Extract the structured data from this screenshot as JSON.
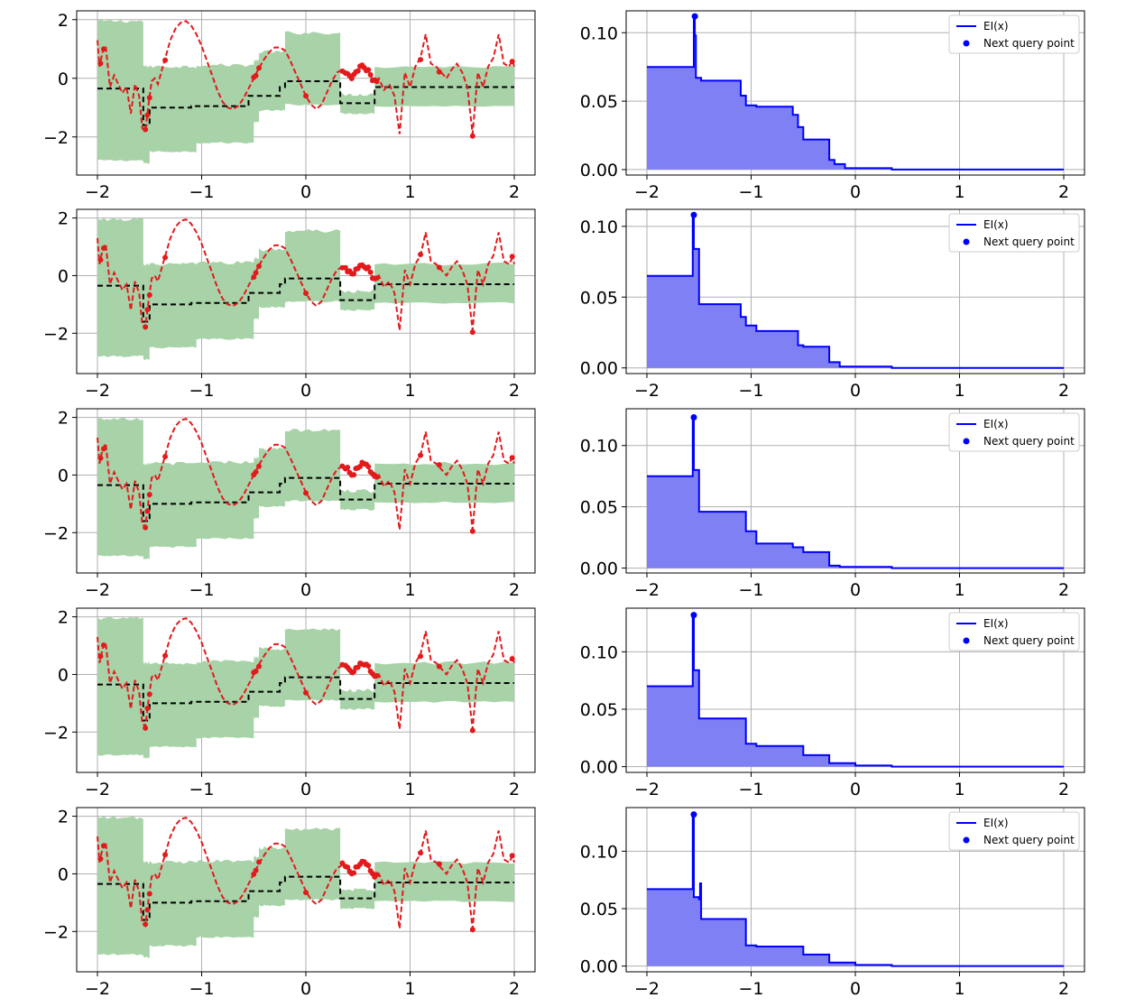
{
  "colors": {
    "band": "#a8d2a8",
    "mean": "#000000",
    "objective": "#e31a1c",
    "samples": "#e31a1c",
    "ei_line": "#0000ff",
    "ei_fill": "#8080f5",
    "next_point": "#0000ff",
    "grid": "#b0b0b0"
  },
  "chart_data": [
    {
      "type": "line",
      "panel": "gp-posterior",
      "row": 0,
      "x_range": [
        -2,
        2
      ],
      "y_range": [
        -3.3,
        2.3
      ],
      "xticks": [
        "−2",
        "−1",
        "0",
        "1",
        "2"
      ],
      "yticks": [
        "−2",
        "0",
        "2"
      ],
      "grid": true,
      "objective": {
        "x": [
          -2,
          -1.98,
          -1.95,
          -1.92,
          -1.88,
          -1.84,
          -1.8,
          -1.76,
          -1.72,
          -1.68,
          -1.64,
          -1.6,
          -1.57,
          -1.54,
          -1.51,
          -1.48,
          -1.45,
          -1.42,
          -1.38,
          -1.34,
          -1.3,
          -1.25,
          -1.2,
          -1.15,
          -1.1,
          -1.05,
          -1.0,
          -0.95,
          -0.9,
          -0.85,
          -0.8,
          -0.75,
          -0.7,
          -0.65,
          -0.6,
          -0.55,
          -0.5,
          -0.45,
          -0.4,
          -0.35,
          -0.3,
          -0.25,
          -0.2,
          -0.15,
          -0.1,
          -0.05,
          0,
          0.05,
          0.1,
          0.15,
          0.2,
          0.25,
          0.3,
          0.35,
          0.4,
          0.45,
          0.5,
          0.55,
          0.6,
          0.65,
          0.7,
          0.75,
          0.8,
          0.85,
          0.9,
          0.95,
          1.0,
          1.05,
          1.1,
          1.15,
          1.2,
          1.25,
          1.3,
          1.35,
          1.4,
          1.45,
          1.5,
          1.55,
          1.6,
          1.65,
          1.7,
          1.75,
          1.8,
          1.85,
          1.9,
          1.95,
          1.98,
          2.0
        ],
        "y": [
          1.3,
          0.4,
          0.9,
          1.1,
          -0.3,
          0.1,
          -0.2,
          -0.5,
          -0.3,
          -1.2,
          -0.2,
          -0.6,
          -1.7,
          -1.8,
          -0.9,
          -0.1,
          0.0,
          -0.2,
          0.3,
          0.8,
          1.3,
          1.7,
          1.9,
          1.95,
          1.8,
          1.5,
          1.1,
          0.6,
          0.1,
          -0.4,
          -0.8,
          -1.0,
          -1.05,
          -0.95,
          -0.7,
          -0.35,
          0.0,
          0.35,
          0.65,
          0.9,
          1.05,
          1.05,
          0.95,
          0.6,
          0.2,
          -0.2,
          -0.6,
          -0.9,
          -1.05,
          -0.9,
          -0.5,
          -0.1,
          0.2,
          0.3,
          0.2,
          0.0,
          0.3,
          0.4,
          0.25,
          -0.1,
          0.0,
          -0.4,
          -0.2,
          -0.6,
          -1.9,
          0.2,
          -0.3,
          0.4,
          0.7,
          1.5,
          0.5,
          0.4,
          0.2,
          0.0,
          0.3,
          0.5,
          0.2,
          -0.3,
          -1.9,
          0.2,
          -0.3,
          0.4,
          0.7,
          1.5,
          0.5,
          0.4,
          0.6,
          0.4
        ]
      }
    },
    {
      "type": "area",
      "panel": "expected-improvement",
      "row": 0,
      "x_range": [
        -2,
        2
      ],
      "y_range": [
        -0.004,
        0.116
      ],
      "xticks": [
        "−2",
        "−1",
        "0",
        "1",
        "2"
      ],
      "yticks": [
        "0.00",
        "0.05",
        "0.10"
      ],
      "grid": true,
      "legend": {
        "position": "top-right",
        "entries": [
          "EI(x)",
          "Next query point"
        ]
      },
      "ei": {
        "x": [
          -2,
          -1.55,
          -1.55,
          -1.54,
          -1.54,
          -1.53,
          -1.53,
          -1.48,
          -1.48,
          -1.1,
          -1.1,
          -1.05,
          -1.05,
          -0.95,
          -0.95,
          -0.6,
          -0.6,
          -0.55,
          -0.55,
          -0.5,
          -0.5,
          -0.25,
          -0.25,
          -0.2,
          -0.2,
          -0.1,
          -0.1,
          0.35,
          0.35,
          2
        ],
        "y": [
          0.075,
          0.075,
          0.112,
          0.112,
          0.098,
          0.098,
          0.067,
          0.067,
          0.065,
          0.065,
          0.054,
          0.054,
          0.047,
          0.047,
          0.046,
          0.046,
          0.04,
          0.04,
          0.031,
          0.031,
          0.022,
          0.022,
          0.007,
          0.007,
          0.004,
          0.004,
          0.001,
          0.001,
          0.0,
          0.0
        ]
      },
      "next_query_point": {
        "x": -1.54,
        "y": 0.112
      }
    },
    {
      "type": "line",
      "panel": "gp-posterior",
      "row": 1,
      "x_range": [
        -2,
        2
      ],
      "y_range": [
        -3.4,
        2.3
      ],
      "xticks": [
        "−2",
        "−1",
        "0",
        "1",
        "2"
      ],
      "yticks": [
        "−2",
        "0",
        "2"
      ],
      "grid": true
    },
    {
      "type": "area",
      "panel": "expected-improvement",
      "row": 1,
      "x_range": [
        -2,
        2
      ],
      "y_range": [
        -0.004,
        0.112
      ],
      "xticks": [
        "−2",
        "−1",
        "0",
        "1",
        "2"
      ],
      "yticks": [
        "0.00",
        "0.05",
        "0.10"
      ],
      "grid": true,
      "legend": {
        "position": "top-right",
        "entries": [
          "EI(x)",
          "Next query point"
        ]
      },
      "ei": {
        "x": [
          -2,
          -1.56,
          -1.56,
          -1.55,
          -1.55,
          -1.5,
          -1.5,
          -1.1,
          -1.1,
          -1.05,
          -1.05,
          -0.95,
          -0.95,
          -0.55,
          -0.55,
          -0.5,
          -0.5,
          -0.25,
          -0.25,
          -0.15,
          -0.15,
          0.35,
          0.35,
          2
        ],
        "y": [
          0.065,
          0.065,
          0.108,
          0.108,
          0.084,
          0.084,
          0.045,
          0.045,
          0.036,
          0.036,
          0.03,
          0.03,
          0.026,
          0.026,
          0.016,
          0.016,
          0.015,
          0.015,
          0.004,
          0.004,
          0.001,
          0.001,
          0.0,
          0.0
        ]
      },
      "next_query_point": {
        "x": -1.55,
        "y": 0.108
      }
    },
    {
      "type": "line",
      "panel": "gp-posterior",
      "row": 2,
      "x_range": [
        -2,
        2
      ],
      "y_range": [
        -3.4,
        2.3
      ],
      "xticks": [
        "−2",
        "−1",
        "0",
        "1",
        "2"
      ],
      "yticks": [
        "−2",
        "0",
        "2"
      ],
      "grid": true
    },
    {
      "type": "area",
      "panel": "expected-improvement",
      "row": 2,
      "x_range": [
        -2,
        2
      ],
      "y_range": [
        -0.004,
        0.13
      ],
      "xticks": [
        "−2",
        "−1",
        "0",
        "1",
        "2"
      ],
      "yticks": [
        "0.00",
        "0.05",
        "0.10"
      ],
      "grid": true,
      "legend": {
        "position": "top-right",
        "entries": [
          "EI(x)",
          "Next query point"
        ]
      },
      "ei": {
        "x": [
          -2,
          -1.56,
          -1.56,
          -1.55,
          -1.55,
          -1.5,
          -1.5,
          -1.05,
          -1.05,
          -0.95,
          -0.95,
          -0.6,
          -0.6,
          -0.5,
          -0.5,
          -0.25,
          -0.25,
          -0.15,
          -0.15,
          0.35,
          0.35,
          2
        ],
        "y": [
          0.075,
          0.075,
          0.123,
          0.123,
          0.08,
          0.08,
          0.046,
          0.046,
          0.03,
          0.03,
          0.02,
          0.02,
          0.017,
          0.017,
          0.013,
          0.013,
          0.002,
          0.002,
          0.001,
          0.001,
          0.0,
          0.0
        ]
      },
      "next_query_point": {
        "x": -1.55,
        "y": 0.123
      }
    },
    {
      "type": "line",
      "panel": "gp-posterior",
      "row": 3,
      "x_range": [
        -2,
        2
      ],
      "y_range": [
        -3.4,
        2.3
      ],
      "xticks": [
        "−2",
        "−1",
        "0",
        "1",
        "2"
      ],
      "yticks": [
        "−2",
        "0",
        "2"
      ],
      "grid": true
    },
    {
      "type": "area",
      "panel": "expected-improvement",
      "row": 3,
      "x_range": [
        -2,
        2
      ],
      "y_range": [
        -0.005,
        0.138
      ],
      "xticks": [
        "−2",
        "−1",
        "0",
        "1",
        "2"
      ],
      "yticks": [
        "0.00",
        "0.05",
        "0.10"
      ],
      "grid": true,
      "legend": {
        "position": "top-right",
        "entries": [
          "EI(x)",
          "Next query point"
        ]
      },
      "ei": {
        "x": [
          -2,
          -1.56,
          -1.56,
          -1.55,
          -1.55,
          -1.5,
          -1.5,
          -1.05,
          -1.05,
          -0.95,
          -0.95,
          -0.5,
          -0.5,
          -0.25,
          -0.25,
          0.0,
          0.0,
          0.35,
          0.35,
          2
        ],
        "y": [
          0.07,
          0.07,
          0.132,
          0.132,
          0.084,
          0.084,
          0.042,
          0.042,
          0.02,
          0.02,
          0.018,
          0.018,
          0.01,
          0.01,
          0.003,
          0.003,
          0.001,
          0.001,
          0.0,
          0.0
        ]
      },
      "next_query_point": {
        "x": -1.55,
        "y": 0.132
      }
    },
    {
      "type": "line",
      "panel": "gp-posterior",
      "row": 4,
      "x_range": [
        -2,
        2
      ],
      "y_range": [
        -3.4,
        2.3
      ],
      "xticks": [
        "−2",
        "−1",
        "0",
        "1",
        "2"
      ],
      "yticks": [
        "−2",
        "0",
        "2"
      ],
      "grid": true
    },
    {
      "type": "area",
      "panel": "expected-improvement",
      "row": 4,
      "x_range": [
        -2,
        2
      ],
      "y_range": [
        -0.005,
        0.138
      ],
      "xticks": [
        "−2",
        "−1",
        "0",
        "1",
        "2"
      ],
      "yticks": [
        "0.00",
        "0.05",
        "0.10"
      ],
      "grid": true,
      "legend": {
        "position": "top-right",
        "entries": [
          "EI(x)",
          "Next query point"
        ]
      },
      "ei": {
        "x": [
          -2,
          -1.56,
          -1.56,
          -1.55,
          -1.55,
          -1.5,
          -1.5,
          -1.49,
          -1.49,
          -1.48,
          -1.48,
          -1.05,
          -1.05,
          -0.95,
          -0.95,
          -0.5,
          -0.5,
          -0.25,
          -0.25,
          0.0,
          0.0,
          0.35,
          0.35,
          2
        ],
        "y": [
          0.067,
          0.067,
          0.132,
          0.132,
          0.06,
          0.06,
          0.058,
          0.058,
          0.072,
          0.072,
          0.041,
          0.041,
          0.018,
          0.018,
          0.017,
          0.017,
          0.01,
          0.01,
          0.003,
          0.003,
          0.001,
          0.001,
          0.0,
          0.0
        ]
      },
      "next_query_point": {
        "x": -1.55,
        "y": 0.132
      }
    }
  ]
}
